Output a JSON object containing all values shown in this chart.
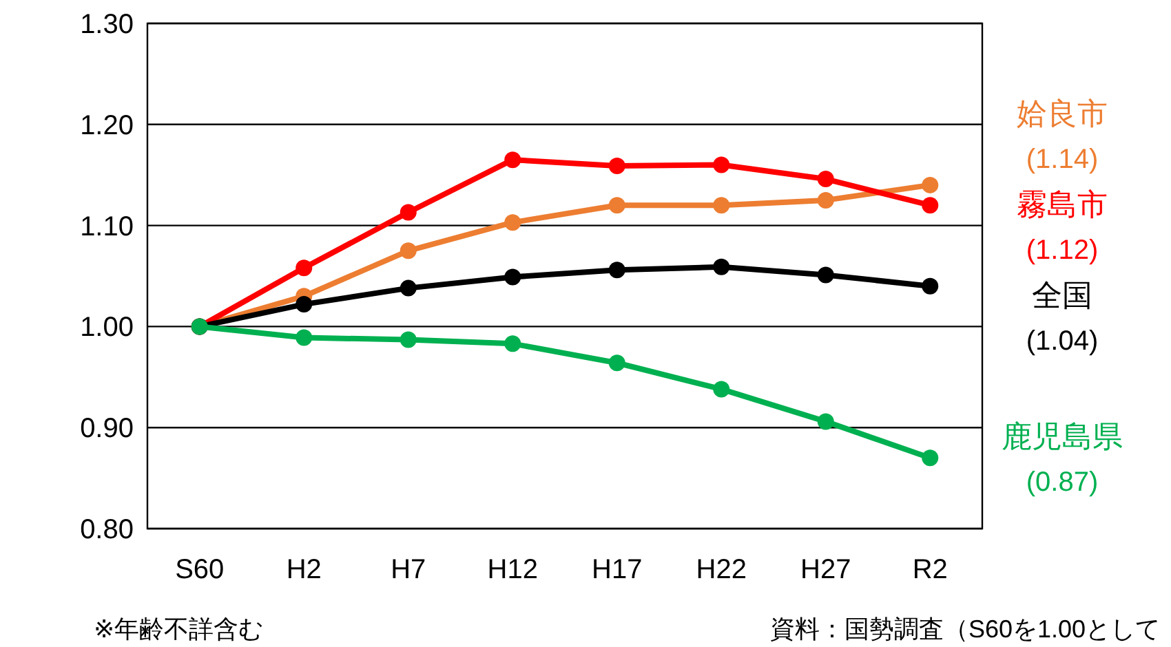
{
  "chart_data": {
    "type": "line",
    "categories": [
      "S60",
      "H2",
      "H7",
      "H12",
      "H17",
      "H22",
      "H27",
      "R2"
    ],
    "series": [
      {
        "name": "姶良市",
        "color": "#ed7d31",
        "values": [
          1.0,
          1.03,
          1.075,
          1.103,
          1.12,
          1.12,
          1.125,
          1.14
        ]
      },
      {
        "name": "霧島市",
        "color": "#ff0000",
        "values": [
          1.0,
          1.058,
          1.113,
          1.165,
          1.159,
          1.16,
          1.146,
          1.12
        ]
      },
      {
        "name": "全国",
        "color": "#000000",
        "values": [
          1.0,
          1.022,
          1.038,
          1.049,
          1.056,
          1.059,
          1.051,
          1.04
        ]
      },
      {
        "name": "鹿児島県",
        "color": "#00b050",
        "values": [
          1.0,
          0.989,
          0.987,
          0.983,
          0.964,
          0.938,
          0.906,
          0.87
        ]
      }
    ],
    "ylim": [
      0.8,
      1.3
    ],
    "yticks": [
      {
        "value": 0.8,
        "label": "0.80"
      },
      {
        "value": 0.9,
        "label": "0.90"
      },
      {
        "value": 1.0,
        "label": "1.00"
      },
      {
        "value": 1.1,
        "label": "1.10"
      },
      {
        "value": 1.2,
        "label": "1.20"
      },
      {
        "value": 1.3,
        "label": "1.30"
      }
    ],
    "grid": "y",
    "marker": "circle",
    "line_style": "solid",
    "annotations": [
      "(1.14)",
      "(1.12)",
      "(1.04)",
      "(0.87)",
      "※年齢不詳含む",
      "資料：国勢調査（S60を1.00として"
    ]
  }
}
